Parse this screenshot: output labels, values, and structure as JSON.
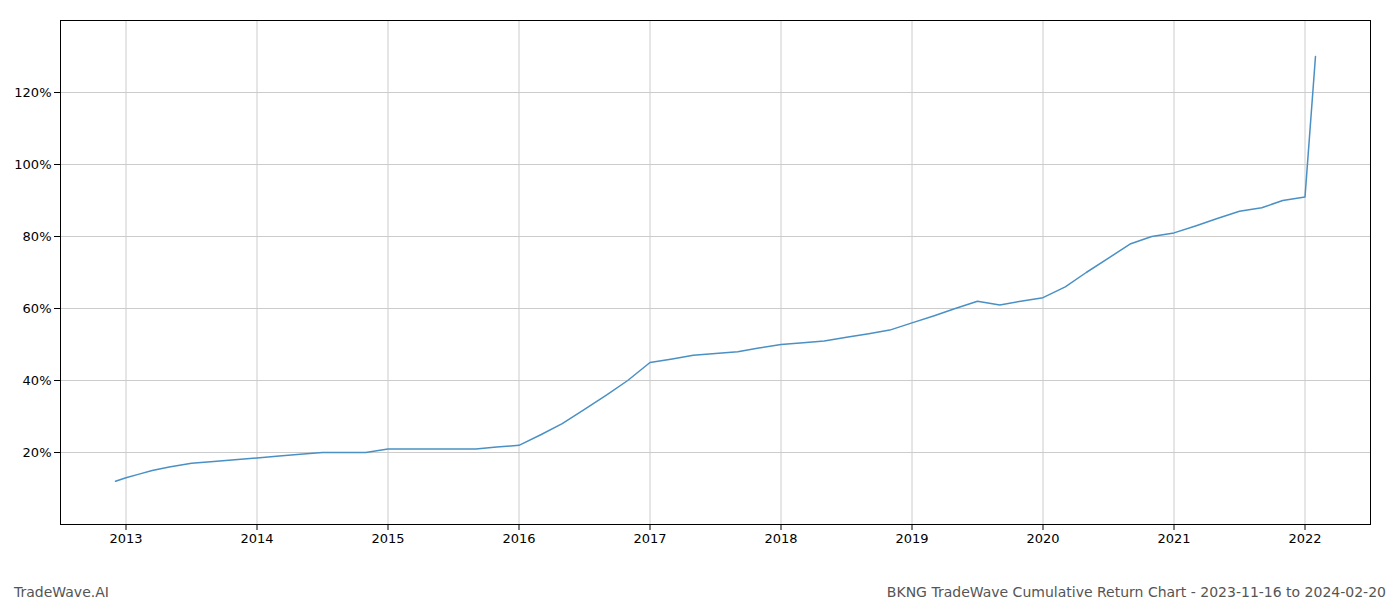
{
  "chart_data": {
    "type": "line",
    "title": "BKNG TradeWave Cumulative Return Chart - 2023-11-16 to 2024-02-20",
    "annotations": [
      "TradeWave.AI"
    ],
    "color": "#4a90c4",
    "x": [
      2012.92,
      2013.0,
      2013.1,
      2013.2,
      2013.33,
      2013.5,
      2013.67,
      2013.83,
      2014.0,
      2014.17,
      2014.33,
      2014.5,
      2014.67,
      2014.83,
      2015.0,
      2015.17,
      2015.33,
      2015.5,
      2015.67,
      2015.83,
      2016.0,
      2016.17,
      2016.33,
      2016.5,
      2016.67,
      2016.83,
      2017.0,
      2017.17,
      2017.33,
      2017.5,
      2017.67,
      2017.83,
      2018.0,
      2018.17,
      2018.33,
      2018.5,
      2018.67,
      2018.83,
      2019.0,
      2019.17,
      2019.33,
      2019.5,
      2019.67,
      2019.83,
      2020.0,
      2020.17,
      2020.33,
      2020.5,
      2020.67,
      2020.83,
      2021.0,
      2021.17,
      2021.33,
      2021.5,
      2021.67,
      2021.83,
      2022.0,
      2022.08
    ],
    "values": [
      12,
      13,
      14,
      15,
      16,
      17,
      17.5,
      18,
      18.5,
      19,
      19.5,
      20,
      20,
      20,
      21,
      21,
      21,
      21,
      21,
      21.5,
      22,
      25,
      28,
      32,
      36,
      40,
      45,
      46,
      47,
      47.5,
      48,
      49,
      50,
      50.5,
      51,
      52,
      53,
      54,
      56,
      58,
      60,
      62,
      61,
      62,
      63,
      66,
      70,
      74,
      78,
      80,
      81,
      83,
      85,
      87,
      88,
      90,
      91,
      130
    ],
    "xlim": [
      2012.5,
      2022.5
    ],
    "xticks": [
      2013,
      2014,
      2015,
      2016,
      2017,
      2018,
      2019,
      2020,
      2021,
      2022
    ],
    "ylim": [
      0,
      140
    ],
    "yticks": [
      {
        "value": 20,
        "label": "20%"
      },
      {
        "value": 40,
        "label": "40%"
      },
      {
        "value": 60,
        "label": "60%"
      },
      {
        "value": 80,
        "label": "80%"
      },
      {
        "value": 100,
        "label": "100%"
      },
      {
        "value": 120,
        "label": "120%"
      }
    ],
    "grid": true
  }
}
